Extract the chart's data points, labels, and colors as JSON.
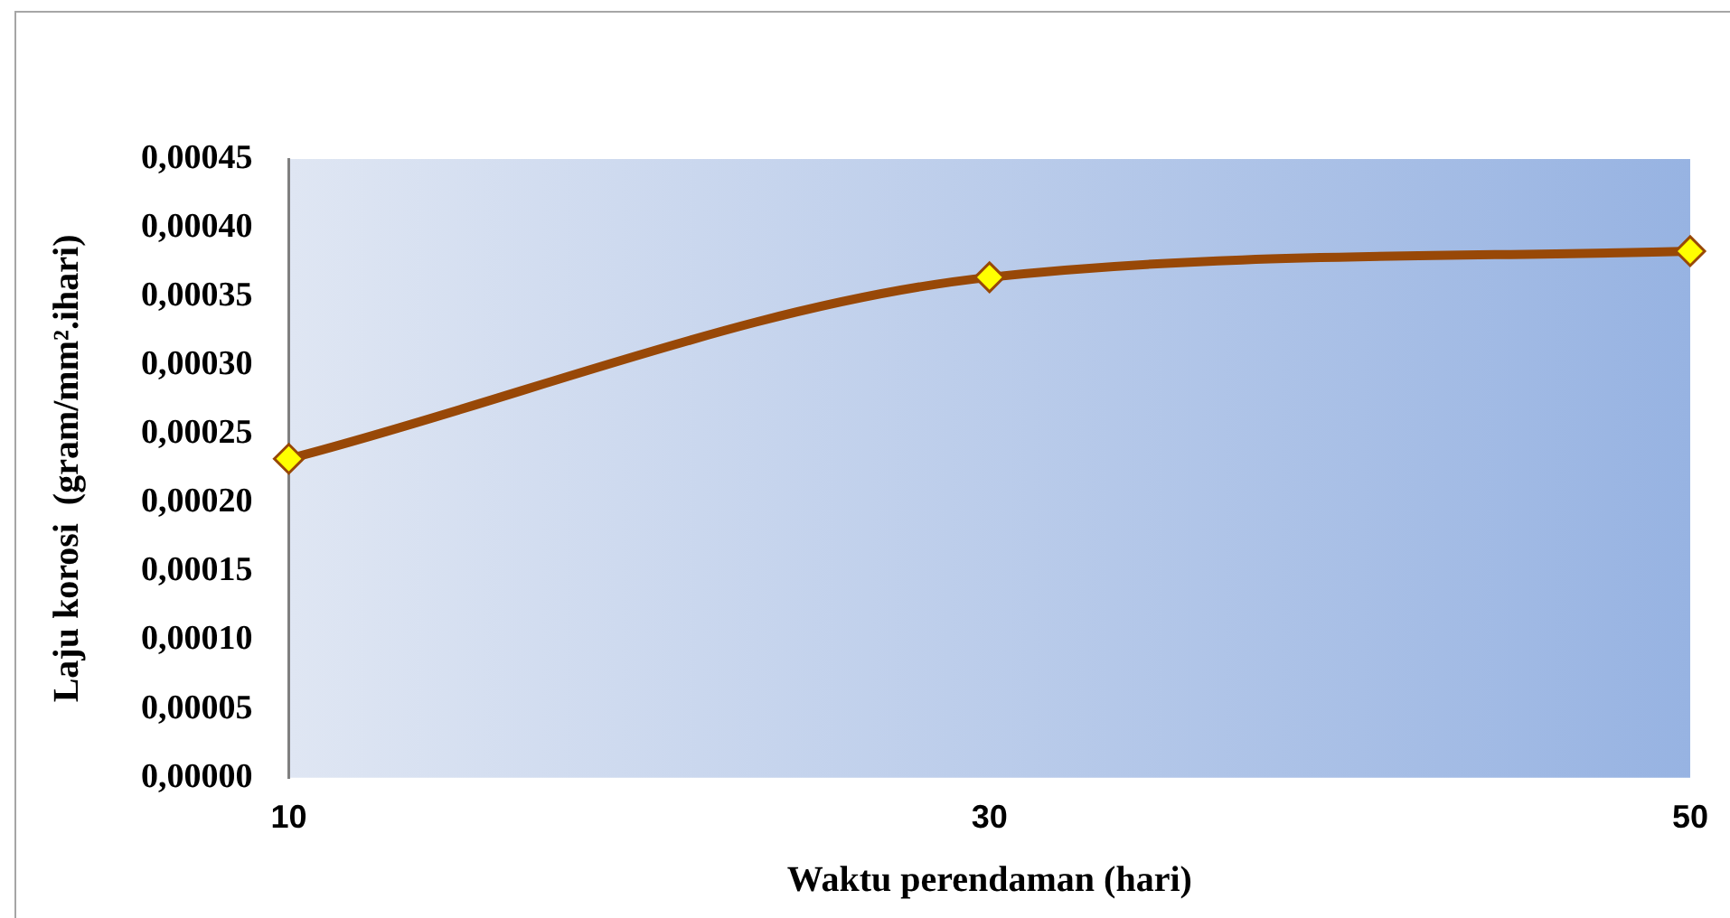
{
  "chart_data": {
    "type": "line",
    "xlabel": "Waktu perendaman (hari)",
    "ylabel": "Laju korosi  (gram/mm².ihari)",
    "categories": [
      "10",
      "30",
      "50"
    ],
    "series": [
      {
        "color": "#984807",
        "values": [
          0.000232,
          0.000364,
          0.000383
        ]
      }
    ],
    "ylim": [
      0,
      0.00045
    ],
    "yticks": [
      {
        "value": 0,
        "label": "0,00000"
      },
      {
        "value": 5e-05,
        "label": "0,00005"
      },
      {
        "value": 0.0001,
        "label": "0,00010"
      },
      {
        "value": 0.00015,
        "label": "0,00015"
      },
      {
        "value": 0.0002,
        "label": "0,00020"
      },
      {
        "value": 0.00025,
        "label": "0,00025"
      },
      {
        "value": 0.0003,
        "label": "0,00030"
      },
      {
        "value": 0.00035,
        "label": "0,00035"
      },
      {
        "value": 0.0004,
        "label": "0,00040"
      },
      {
        "value": 0.00045,
        "label": "0,00045"
      }
    ],
    "grid": false,
    "legend": false,
    "marker": "diamond",
    "line_style": "solid"
  }
}
